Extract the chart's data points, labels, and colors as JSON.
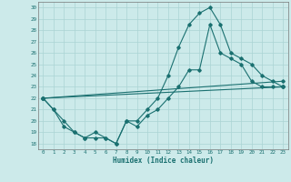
{
  "xlabel": "Humidex (Indice chaleur)",
  "background_color": "#cceaea",
  "grid_color": "#aad4d4",
  "line_color": "#1a7070",
  "xlim": [
    -0.5,
    23.5
  ],
  "ylim": [
    17.5,
    30.5
  ],
  "series1_x": [
    0,
    1,
    2,
    3,
    4,
    5,
    6,
    7,
    8,
    9,
    10,
    11,
    12,
    13,
    14,
    15,
    16,
    17,
    18,
    19,
    20,
    21,
    22,
    23
  ],
  "series1_y": [
    22,
    21,
    20,
    19,
    18.5,
    18.5,
    18.5,
    18,
    20,
    20,
    21,
    22,
    24,
    26.5,
    28.5,
    29.5,
    30,
    28.5,
    26,
    25.5,
    25,
    24,
    23.5,
    23
  ],
  "series2_x": [
    0,
    1,
    2,
    3,
    4,
    5,
    6,
    7,
    8,
    9,
    10,
    11,
    12,
    13,
    14,
    15,
    16,
    17,
    18,
    19,
    20,
    21,
    22,
    23
  ],
  "series2_y": [
    22,
    21,
    19.5,
    19,
    18.5,
    19,
    18.5,
    18,
    20,
    19.5,
    20.5,
    21,
    22,
    23,
    24.5,
    24.5,
    28.5,
    26,
    25.5,
    25,
    23.5,
    23,
    23,
    23
  ],
  "series3_x": [
    0,
    23
  ],
  "series3_y": [
    22,
    23
  ],
  "series4_x": [
    0,
    23
  ],
  "series4_y": [
    22,
    23.5
  ],
  "yticks": [
    18,
    19,
    20,
    21,
    22,
    23,
    24,
    25,
    26,
    27,
    28,
    29,
    30
  ],
  "xticks": [
    0,
    1,
    2,
    3,
    4,
    5,
    6,
    7,
    8,
    9,
    10,
    11,
    12,
    13,
    14,
    15,
    16,
    17,
    18,
    19,
    20,
    21,
    22,
    23
  ]
}
